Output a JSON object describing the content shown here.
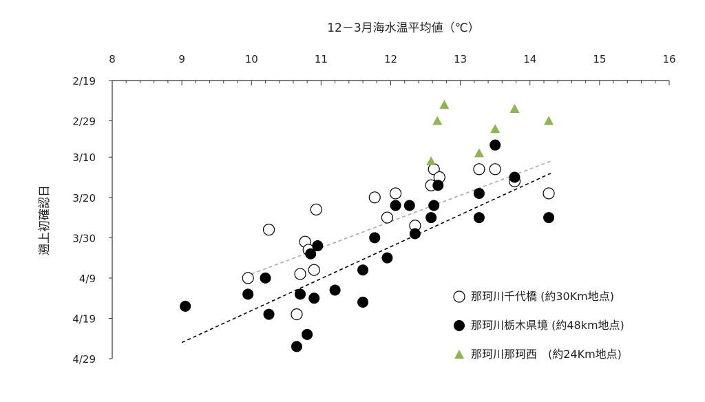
{
  "chart_data": {
    "type": "scatter",
    "title": "",
    "xlabel": "12－3月海水温平均値（℃）",
    "ylabel": "遡上初確認日",
    "x_axis_position": "top",
    "xlim": [
      8,
      16
    ],
    "x_ticks": [
      8,
      9,
      10,
      11,
      12,
      13,
      14,
      15,
      16
    ],
    "ylim_dates": [
      "2/19",
      "4/29"
    ],
    "y_reversed": true,
    "y_ticks": [
      "2/19",
      "2/29",
      "3/10",
      "3/20",
      "3/30",
      "4/9",
      "4/19",
      "4/29"
    ],
    "grid": false,
    "legend_position": "bottom-right",
    "series": [
      {
        "name": "那珂川千代橋 (約30Km地点)",
        "marker": "open-circle",
        "color": "#000000",
        "points": [
          {
            "x": 9.95,
            "y": "4/9"
          },
          {
            "x": 10.25,
            "y": "3/28"
          },
          {
            "x": 10.65,
            "y": "4/18"
          },
          {
            "x": 10.7,
            "y": "4/8"
          },
          {
            "x": 10.77,
            "y": "3/31"
          },
          {
            "x": 10.82,
            "y": "4/2"
          },
          {
            "x": 10.9,
            "y": "4/7"
          },
          {
            "x": 10.93,
            "y": "3/23"
          },
          {
            "x": 11.77,
            "y": "3/20"
          },
          {
            "x": 11.95,
            "y": "3/25"
          },
          {
            "x": 12.07,
            "y": "3/19"
          },
          {
            "x": 12.35,
            "y": "3/27"
          },
          {
            "x": 12.58,
            "y": "3/17"
          },
          {
            "x": 12.62,
            "y": "3/13"
          },
          {
            "x": 12.7,
            "y": "3/15"
          },
          {
            "x": 13.27,
            "y": "3/13"
          },
          {
            "x": 13.5,
            "y": "3/13"
          },
          {
            "x": 13.78,
            "y": "3/16"
          },
          {
            "x": 14.27,
            "y": "3/19"
          }
        ]
      },
      {
        "name": "那珂川栃木県境 (約48km地点)",
        "marker": "filled-circle",
        "color": "#000000",
        "points": [
          {
            "x": 9.05,
            "y": "4/16"
          },
          {
            "x": 9.95,
            "y": "4/13"
          },
          {
            "x": 10.2,
            "y": "4/9"
          },
          {
            "x": 10.25,
            "y": "4/18"
          },
          {
            "x": 10.65,
            "y": "4/26"
          },
          {
            "x": 10.7,
            "y": "4/13"
          },
          {
            "x": 10.8,
            "y": "4/23"
          },
          {
            "x": 10.85,
            "y": "4/3"
          },
          {
            "x": 10.9,
            "y": "4/14"
          },
          {
            "x": 10.95,
            "y": "4/1"
          },
          {
            "x": 11.2,
            "y": "4/12"
          },
          {
            "x": 11.6,
            "y": "4/15"
          },
          {
            "x": 11.6,
            "y": "4/7"
          },
          {
            "x": 11.77,
            "y": "3/30"
          },
          {
            "x": 11.95,
            "y": "4/4"
          },
          {
            "x": 12.07,
            "y": "3/22"
          },
          {
            "x": 12.27,
            "y": "3/22"
          },
          {
            "x": 12.35,
            "y": "3/29"
          },
          {
            "x": 12.58,
            "y": "3/25"
          },
          {
            "x": 12.62,
            "y": "3/22"
          },
          {
            "x": 12.68,
            "y": "3/17"
          },
          {
            "x": 13.27,
            "y": "3/19"
          },
          {
            "x": 13.27,
            "y": "3/25"
          },
          {
            "x": 13.5,
            "y": "3/7"
          },
          {
            "x": 13.78,
            "y": "3/15"
          },
          {
            "x": 14.27,
            "y": "3/25"
          }
        ]
      },
      {
        "name": "那珂川那珂西　(約24Km地点)",
        "marker": "triangle",
        "color": "#8db650",
        "points": [
          {
            "x": 12.58,
            "y": "3/11"
          },
          {
            "x": 12.67,
            "y": "3/1"
          },
          {
            "x": 12.77,
            "y": "2/25"
          },
          {
            "x": 13.27,
            "y": "3/9"
          },
          {
            "x": 13.5,
            "y": "3/3"
          },
          {
            "x": 13.78,
            "y": "2/26"
          },
          {
            "x": 14.27,
            "y": "3/1"
          }
        ]
      }
    ],
    "trendlines": [
      {
        "series": "那珂川千代橋 (約30Km地点)",
        "style": "dashed",
        "color": "#aaaaaa",
        "points": [
          {
            "x": 10.0,
            "y": "4/8"
          },
          {
            "x": 14.3,
            "y": "3/11"
          }
        ]
      },
      {
        "series": "那珂川栃木県境 (約48km地点)",
        "style": "dashed",
        "color": "#000000",
        "points": [
          {
            "x": 9.0,
            "y": "4/25"
          },
          {
            "x": 14.3,
            "y": "3/14"
          }
        ]
      }
    ]
  }
}
